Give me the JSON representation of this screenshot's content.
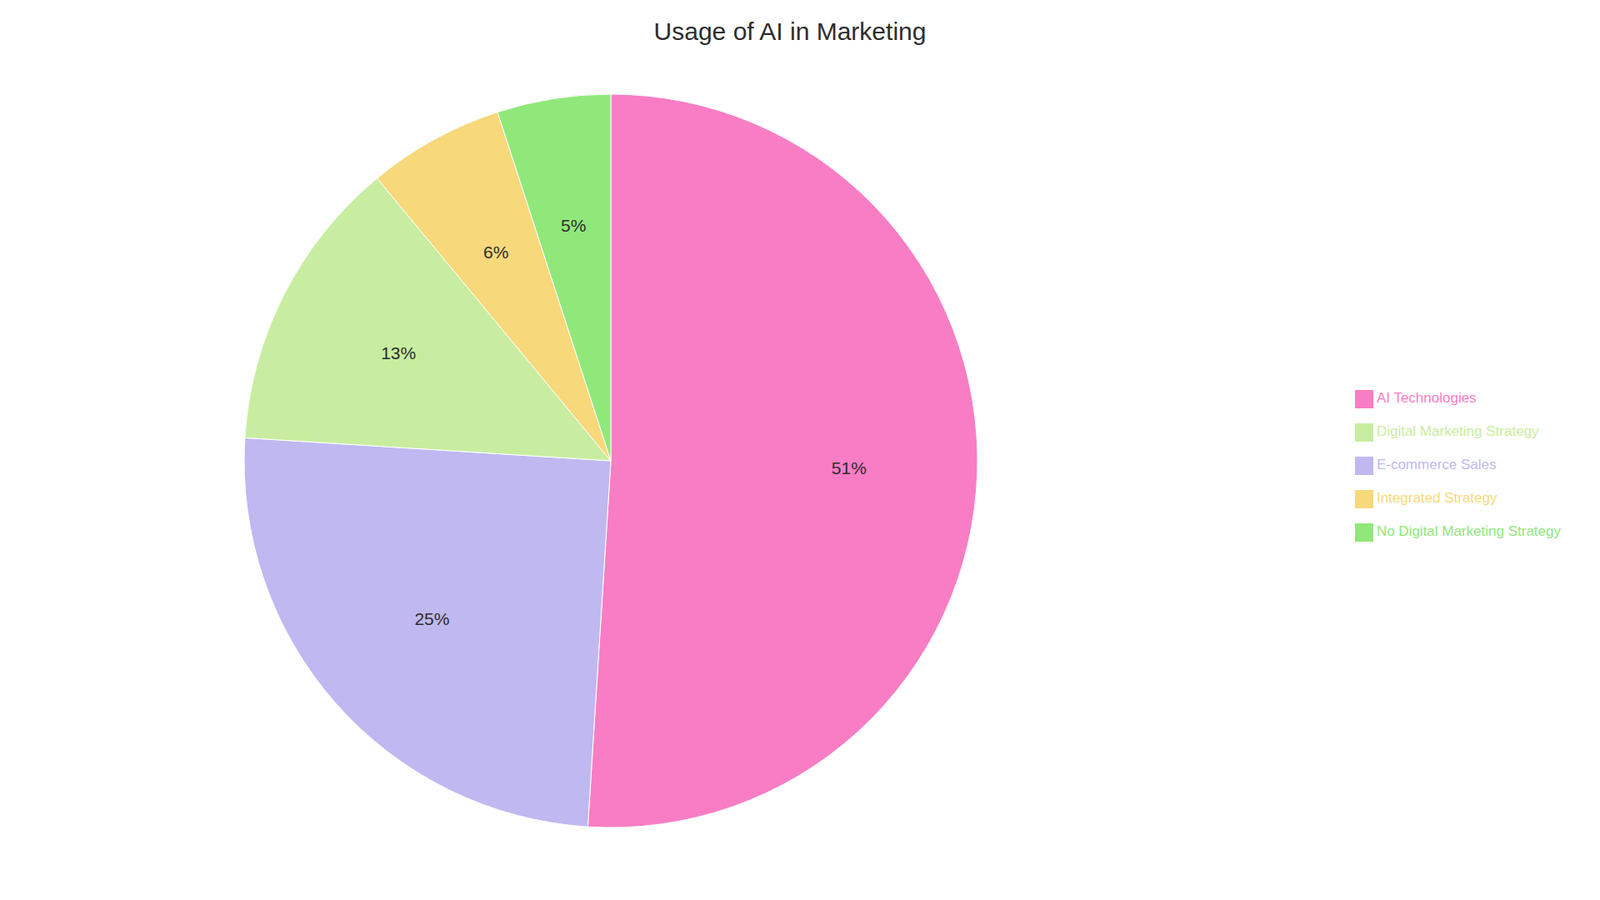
{
  "chart_data": {
    "type": "pie",
    "title": "Usage of AI in Marketing",
    "categories": [
      "AI Technologies",
      "E-commerce Sales",
      "Digital Marketing Strategy",
      "Integrated Strategy",
      "No Digital Marketing Strategy"
    ],
    "values": [
      51,
      25,
      13,
      6,
      5
    ],
    "value_labels": [
      "51%",
      "25%",
      "13%",
      "6%",
      "5%"
    ],
    "colors": [
      "#F97DC4",
      "#C0B8F0",
      "#C8EDA0",
      "#F7D87A",
      "#90E87A"
    ],
    "data_labels": true,
    "legend": "right"
  }
}
